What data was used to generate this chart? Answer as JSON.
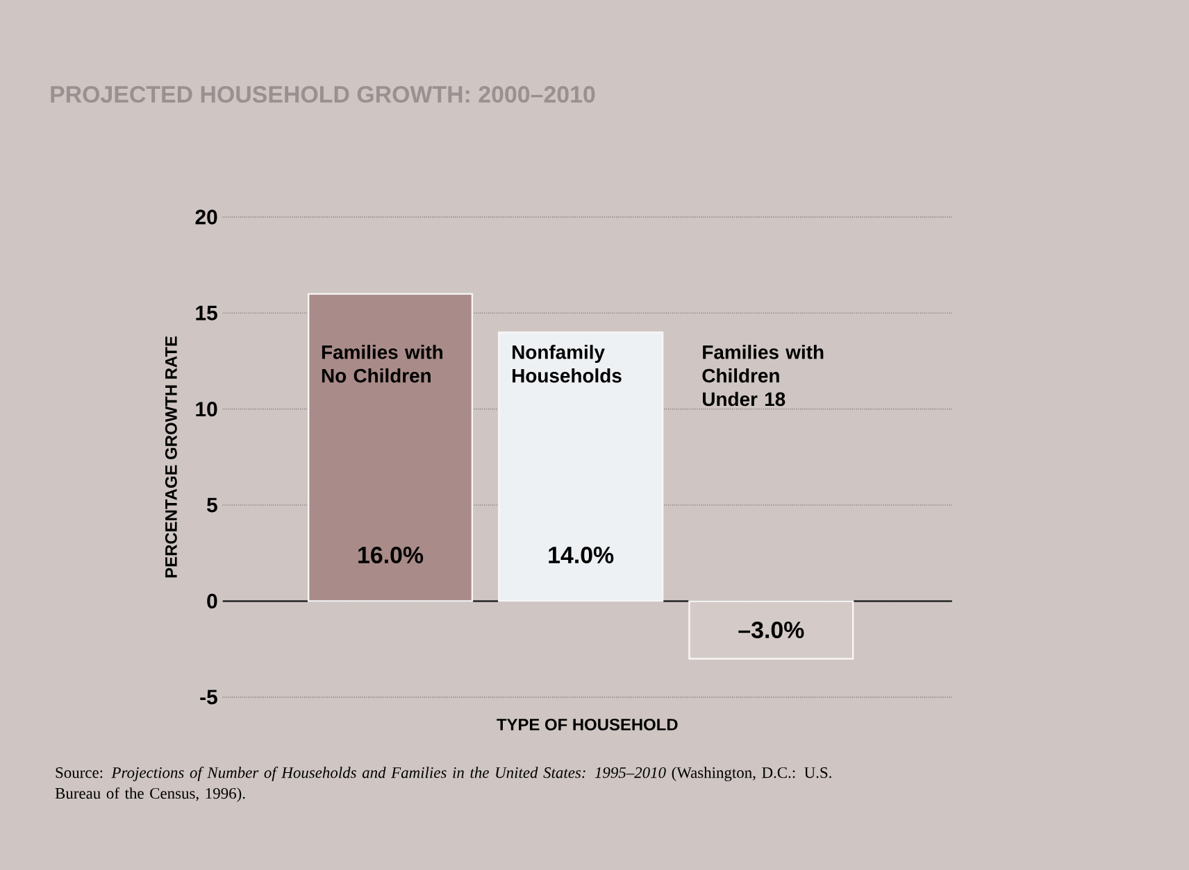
{
  "chart_data": {
    "type": "bar",
    "title": "PROJECTED HOUSEHOLD GROWTH: 2000–2010",
    "categories": [
      "Families with No Children",
      "Nonfamily Households",
      "Families with Children Under 18"
    ],
    "values": [
      16,
      14,
      -3
    ],
    "colors": [
      "#a98c89",
      "#eef1f4",
      "#d4cbc8"
    ],
    "value_labels": [
      "16.0%",
      "14.0%",
      "–3.0%"
    ],
    "xlabel": "TYPE OF HOUSEHOLD",
    "ylabel": "PERCENTAGE GROWTH RATE",
    "ylim": [
      -5,
      20
    ],
    "yticks": [
      -5,
      0,
      5,
      10,
      15,
      20
    ],
    "grid": "y",
    "annotations": [
      "Source: *Projections of Number of Households and Families in the United States: 1995–2010* (Washington, D.C.: U.S. Bureau of the Census, 1996)."
    ]
  }
}
